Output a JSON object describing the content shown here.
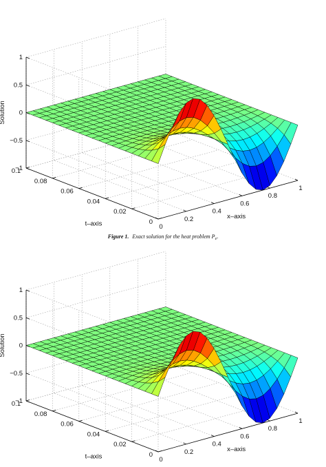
{
  "figure_caption": {
    "label": "Figure 1.",
    "text": "Exact solution for the heat problem P",
    "subscript": "e",
    "end": "."
  },
  "chart_data": [
    {
      "type": "surface",
      "title": "",
      "xlabel": "x–axis",
      "ylabel": "t–axis",
      "zlabel": "Solution",
      "xlim": [
        0,
        1
      ],
      "ylim": [
        0,
        0.1
      ],
      "zlim": [
        -1,
        1
      ],
      "xticks": [
        "0",
        "0.2",
        "0.4",
        "0.6",
        "0.8",
        "1"
      ],
      "yticks": [
        "0",
        "0.02",
        "0.04",
        "0.06",
        "0.08",
        "0.1"
      ],
      "zticks": [
        "−1",
        "−0.5",
        "0",
        "0.5",
        "1"
      ],
      "grid": true,
      "colormap": "jet",
      "mesh": {
        "x_count": 21,
        "t_count": 21
      },
      "surface_samples": [
        {
          "t": 0,
          "x": 0,
          "value": 0
        },
        {
          "t": 0,
          "x": 0.25,
          "value": 1
        },
        {
          "t": 0,
          "x": 0.5,
          "value": 0
        },
        {
          "t": 0,
          "x": 0.75,
          "value": -1
        },
        {
          "t": 0,
          "x": 1,
          "value": 0
        },
        {
          "t": 0.1,
          "x": 0.25,
          "value": 0
        },
        {
          "t": 0.1,
          "x": 0.75,
          "value": 0
        }
      ]
    },
    {
      "type": "surface",
      "title": "",
      "xlabel": "x–axis",
      "ylabel": "t–axis",
      "zlabel": "Solution",
      "xlim": [
        0,
        1
      ],
      "ylim": [
        0,
        0.1
      ],
      "zlim": [
        -1,
        1
      ],
      "xticks": [
        "0",
        "0.2",
        "0.4",
        "0.6",
        "0.8",
        "1"
      ],
      "yticks": [
        "0",
        "0.02",
        "0.04",
        "0.06",
        "0.08",
        "0.1"
      ],
      "zticks": [
        "−1",
        "−0.5",
        "0",
        "0.5",
        "1"
      ],
      "grid": true,
      "colormap": "jet",
      "mesh": {
        "x_count": 21,
        "t_count": 21
      },
      "surface_samples": [
        {
          "t": 0,
          "x": 0,
          "value": 0
        },
        {
          "t": 0,
          "x": 0.25,
          "value": 1
        },
        {
          "t": 0,
          "x": 0.5,
          "value": 0
        },
        {
          "t": 0,
          "x": 0.75,
          "value": -1
        },
        {
          "t": 0,
          "x": 1,
          "value": 0
        },
        {
          "t": 0.1,
          "x": 0.25,
          "value": 0
        },
        {
          "t": 0.1,
          "x": 0.75,
          "value": 0
        }
      ]
    }
  ]
}
